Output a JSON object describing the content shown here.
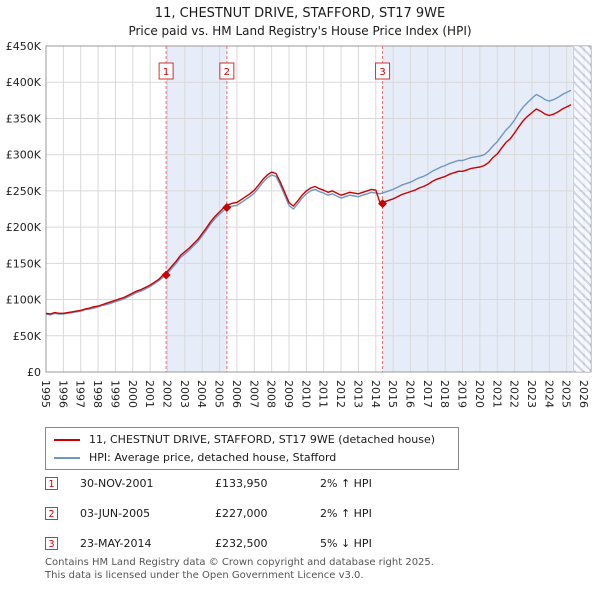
{
  "header": {
    "title": "11, CHESTNUT DRIVE, STAFFORD, ST17 9WE",
    "subtitle": "Price paid vs. HM Land Registry's House Price Index (HPI)"
  },
  "chart_data": {
    "type": "line",
    "x_axis": {
      "min": 1995,
      "max": 2026.4,
      "tick_years": [
        1995,
        1996,
        1997,
        1998,
        1999,
        2000,
        2001,
        2002,
        2003,
        2004,
        2005,
        2006,
        2007,
        2008,
        2009,
        2010,
        2011,
        2012,
        2013,
        2014,
        2015,
        2016,
        2017,
        2018,
        2019,
        2020,
        2021,
        2022,
        2023,
        2024,
        2025,
        2026
      ]
    },
    "y_axis": {
      "min": 0,
      "max": 450000,
      "ticks": [
        {
          "value": 0,
          "label": "£0"
        },
        {
          "value": 50000,
          "label": "£50K"
        },
        {
          "value": 100000,
          "label": "£100K"
        },
        {
          "value": 150000,
          "label": "£150K"
        },
        {
          "value": 200000,
          "label": "£200K"
        },
        {
          "value": 250000,
          "label": "£250K"
        },
        {
          "value": 300000,
          "label": "£300K"
        },
        {
          "value": 350000,
          "label": "£350K"
        },
        {
          "value": 400000,
          "label": "£400K"
        },
        {
          "value": 450000,
          "label": "£450K"
        }
      ]
    },
    "x_start": 1995.0,
    "x_step": 0.25,
    "series": [
      {
        "name": "HPI: Average price, detached house, Stafford",
        "color": "#6f97c4",
        "values_k": [
          80,
          79,
          81,
          80,
          80,
          81,
          82,
          83,
          84,
          86,
          87,
          88,
          90,
          92,
          93,
          95,
          97,
          99,
          101,
          104,
          107,
          110,
          112,
          115,
          118,
          122,
          126,
          131,
          136,
          143,
          150,
          158,
          163,
          168,
          174,
          180,
          188,
          196,
          205,
          212,
          218,
          223,
          227,
          229,
          230,
          234,
          238,
          242,
          247,
          254,
          262,
          268,
          272,
          270,
          258,
          244,
          230,
          225,
          232,
          240,
          246,
          250,
          252,
          249,
          247,
          244,
          246,
          243,
          240,
          242,
          244,
          243,
          242,
          244,
          246,
          248,
          247,
          246,
          248,
          250,
          252,
          255,
          258,
          260,
          262,
          265,
          268,
          270,
          273,
          277,
          280,
          283,
          285,
          288,
          290,
          292,
          292,
          294,
          296,
          297,
          298,
          300,
          305,
          312,
          318,
          326,
          334,
          340,
          348,
          358,
          366,
          372,
          378,
          383,
          380,
          376,
          374,
          376,
          379,
          383,
          386,
          389
        ]
      },
      {
        "name": "11, CHESTNUT DRIVE, STAFFORD, ST17 9WE (detached house)",
        "color": "#cc0000",
        "values_k": [
          81,
          80,
          82,
          81,
          81,
          82,
          83,
          84,
          85,
          87,
          88,
          90,
          91,
          93,
          95,
          97,
          99,
          101,
          103,
          106,
          109,
          112,
          114,
          117,
          120,
          124,
          128,
          134,
          139,
          146,
          153,
          161,
          166,
          171,
          177,
          183,
          191,
          199,
          208,
          215,
          221,
          227,
          231,
          233,
          234,
          238,
          242,
          246,
          251,
          258,
          266,
          272,
          276,
          274,
          262,
          248,
          234,
          229,
          236,
          244,
          250,
          254,
          256,
          253,
          251,
          248,
          250,
          247,
          244,
          246,
          248,
          247,
          246,
          248,
          250,
          252,
          251,
          233,
          235,
          237,
          239,
          242,
          245,
          247,
          249,
          251,
          254,
          256,
          259,
          263,
          266,
          268,
          270,
          273,
          275,
          277,
          277,
          279,
          281,
          282,
          283,
          285,
          289,
          296,
          301,
          309,
          317,
          322,
          330,
          339,
          347,
          353,
          358,
          363,
          360,
          356,
          354,
          356,
          359,
          363,
          366,
          369
        ]
      }
    ],
    "sales": [
      {
        "num": "1",
        "x": 2001.92,
        "price": 133950
      },
      {
        "num": "2",
        "x": 2005.42,
        "price": 227000
      },
      {
        "num": "3",
        "x": 2014.39,
        "price": 232500
      }
    ],
    "shaded_bands": [
      [
        2001.92,
        2005.42
      ],
      [
        2014.39,
        2025.35
      ]
    ],
    "hatch_band": [
      2025.35,
      2026.4
    ],
    "colors": {
      "band": "#e6edf8",
      "grid": "#d9d9d9",
      "border": "#999999",
      "dashed": "#e57373",
      "marker": "#cc0000",
      "tick_text": "#222222"
    }
  },
  "legend": {
    "items": [
      {
        "label": "11, CHESTNUT DRIVE, STAFFORD, ST17 9WE (detached house)",
        "color": "#cc0000"
      },
      {
        "label": "HPI: Average price, detached house, Stafford",
        "color": "#6f97c4"
      }
    ]
  },
  "sales_table": {
    "rows": [
      {
        "num": "1",
        "date": "30-NOV-2001",
        "price": "£133,950",
        "hpi_delta": "2% ↑ HPI"
      },
      {
        "num": "2",
        "date": "03-JUN-2005",
        "price": "£227,000",
        "hpi_delta": "2% ↑ HPI"
      },
      {
        "num": "3",
        "date": "23-MAY-2014",
        "price": "£232,500",
        "hpi_delta": "5% ↓ HPI"
      }
    ]
  },
  "footer": {
    "line1": "Contains HM Land Registry data © Crown copyright and database right 2025.",
    "line2": "This data is licensed under the Open Government Licence v3.0."
  }
}
